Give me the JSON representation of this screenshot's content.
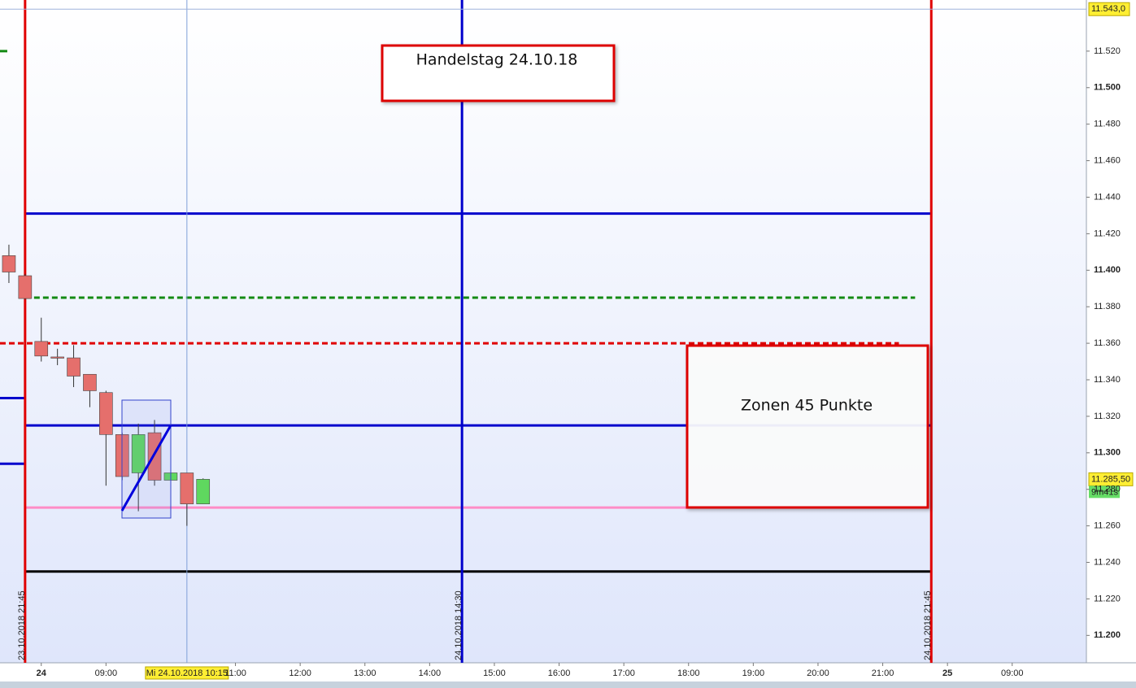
{
  "chart_data": {
    "type": "candlestick",
    "categories": [
      null,
      null,
      "24",
      null,
      null,
      null,
      "09:00",
      null,
      null,
      null,
      null,
      null,
      null,
      null,
      "11:00",
      null,
      null,
      null,
      "12:00",
      null,
      null,
      null,
      "13:00",
      null,
      null,
      null,
      "14:00",
      null,
      null,
      null,
      "15:00",
      null,
      null,
      null,
      "16:00",
      null,
      null,
      null,
      "17:00",
      null,
      null,
      null,
      "18:00",
      null,
      null,
      null,
      "19:00",
      null,
      null,
      null,
      "20:00",
      null,
      null,
      null,
      "21:00",
      null,
      null,
      null,
      "25",
      null,
      null,
      null,
      "09:00"
    ],
    "open": [
      11408,
      11397,
      11361,
      11352.5,
      11352,
      11343,
      11333,
      11310,
      11289,
      11311,
      11285,
      11289,
      11272,
      null,
      null,
      null,
      null,
      null,
      null,
      null,
      null,
      null,
      null,
      null,
      null,
      null,
      null,
      null,
      null,
      null,
      null,
      null,
      null,
      null,
      null,
      null,
      null,
      null,
      null,
      null,
      null,
      null,
      null,
      null,
      null,
      null,
      null,
      null,
      null,
      null,
      null,
      null,
      null,
      null,
      null,
      null,
      null,
      null,
      null,
      null,
      null,
      null,
      null
    ],
    "high": [
      11414,
      11398,
      11374,
      11357,
      11359,
      11343,
      11334,
      11311,
      11316,
      11318,
      11289,
      11289,
      11286,
      null,
      null,
      null,
      null,
      null,
      null,
      null,
      null,
      null,
      null,
      null,
      null,
      null,
      null,
      null,
      null,
      null,
      null,
      null,
      null,
      null,
      null,
      null,
      null,
      null,
      null,
      null,
      null,
      null,
      null,
      null,
      null,
      null,
      null,
      null,
      null,
      null,
      null,
      null,
      null,
      null,
      null,
      null,
      null,
      null,
      null,
      null,
      null,
      null,
      null
    ],
    "low": [
      11393,
      11384,
      11350,
      11348,
      11336,
      11325,
      11282,
      11285,
      11268,
      11282,
      11285,
      11260,
      11272,
      null,
      null,
      null,
      null,
      null,
      null,
      null,
      null,
      null,
      null,
      null,
      null,
      null,
      null,
      null,
      null,
      null,
      null,
      null,
      null,
      null,
      null,
      null,
      null,
      null,
      null,
      null,
      null,
      null,
      null,
      null,
      null,
      null,
      null,
      null,
      null,
      null,
      null,
      null,
      null,
      null,
      null,
      null,
      null,
      null,
      null,
      null,
      null,
      null,
      null
    ],
    "close": [
      11399,
      11384.5,
      11353,
      11352,
      11342,
      11334,
      11310,
      11287,
      11310,
      11285,
      11289,
      11272,
      11285.5,
      null,
      null,
      null,
      null,
      null,
      null,
      null,
      null,
      null,
      null,
      null,
      null,
      null,
      null,
      null,
      null,
      null,
      null,
      null,
      null,
      null,
      null,
      null,
      null,
      null,
      null,
      null,
      null,
      null,
      null,
      null,
      null,
      null,
      null,
      null,
      null,
      null,
      null,
      null,
      null,
      null,
      null,
      null,
      null,
      null,
      null,
      null,
      null,
      null,
      null
    ],
    "up_color": "#5fd85f",
    "down_color": "#e56f6c",
    "ylim": [
      11185,
      11548
    ],
    "yticks": [
      {
        "value": 11200,
        "label": "11.200"
      },
      {
        "value": 11220,
        "label": "11.220"
      },
      {
        "value": 11240,
        "label": "11.240"
      },
      {
        "value": 11260,
        "label": "11.260"
      },
      {
        "value": 11280,
        "label": "11.280"
      },
      {
        "value": 11300,
        "label": "11.300"
      },
      {
        "value": 11320,
        "label": "11.320"
      },
      {
        "value": 11340,
        "label": "11.340"
      },
      {
        "value": 11360,
        "label": "11.360"
      },
      {
        "value": 11380,
        "label": "11.380"
      },
      {
        "value": 11400,
        "label": "11.400"
      },
      {
        "value": 11420,
        "label": "11.420"
      },
      {
        "value": 11440,
        "label": "11.440"
      },
      {
        "value": 11460,
        "label": "11.460"
      },
      {
        "value": 11480,
        "label": "11.480"
      },
      {
        "value": 11500,
        "label": "11.500"
      },
      {
        "value": 11520,
        "label": "11.520"
      }
    ],
    "hlines": [
      {
        "value": 11431,
        "color": "#0000cc",
        "style": "solid",
        "width": 3,
        "x": [
          1,
          57
        ]
      },
      {
        "value": 11315,
        "color": "#0000cc",
        "style": "solid",
        "width": 3,
        "x": [
          1,
          57
        ]
      },
      {
        "value": 11270,
        "color": "#ff8cc6",
        "style": "solid",
        "width": 3,
        "x": [
          1,
          42
        ]
      },
      {
        "value": 11235,
        "color": "#000000",
        "style": "solid",
        "width": 3,
        "x": [
          1,
          57
        ]
      },
      {
        "value": 11385,
        "color": "#138a13",
        "style": "dotted",
        "width": 3,
        "x": [
          1,
          56
        ]
      },
      {
        "value": 11360,
        "color": "#e00000",
        "style": "dotted",
        "width": 3,
        "x": [
          -0.5,
          55
        ]
      },
      {
        "value": 11330,
        "color": "#0000cc",
        "style": "solid",
        "width": 3,
        "x": [
          -0.5,
          1
        ]
      },
      {
        "value": 11294,
        "color": "#0000cc",
        "style": "solid",
        "width": 3,
        "x": [
          -0.5,
          1
        ]
      },
      {
        "value": 11520,
        "color": "#138a13",
        "style": "solid",
        "width": 3,
        "x": [
          -0.5,
          -0.1
        ]
      }
    ],
    "vlines": [
      {
        "x": 1,
        "label": "23.10.2018 21:45",
        "color": "#e00000"
      },
      {
        "x": 28,
        "label": "24.10.2018 14:30",
        "color": "#0000cc"
      },
      {
        "x": 57,
        "label": "24.10.2018 21:45",
        "color": "#e00000"
      }
    ],
    "cursor": {
      "x": 11,
      "x_label": "Mi 24.10.2018 10:15",
      "y": 11543,
      "y_label": "11.543,0"
    },
    "last_price": {
      "value": 11285.5,
      "label": "11.285,50",
      "timer": "9m41s"
    },
    "annotations": [
      "Handelstag 24.10.18",
      "Zonen 45 Punkte"
    ]
  }
}
